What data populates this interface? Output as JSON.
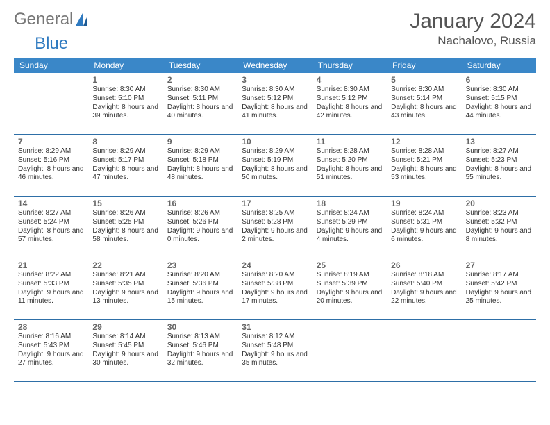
{
  "logo": {
    "text_general": "General",
    "text_blue": "Blue"
  },
  "header": {
    "month_title": "January 2024",
    "location": "Nachalovo, Russia"
  },
  "colors": {
    "header_bg": "#3a87c8",
    "divider": "#2e6fa7",
    "text": "#333333",
    "muted": "#666666"
  },
  "dow": [
    "Sunday",
    "Monday",
    "Tuesday",
    "Wednesday",
    "Thursday",
    "Friday",
    "Saturday"
  ],
  "weeks": [
    [
      null,
      {
        "n": "1",
        "sr": "8:30 AM",
        "ss": "5:10 PM",
        "dl": "8 hours and 39 minutes."
      },
      {
        "n": "2",
        "sr": "8:30 AM",
        "ss": "5:11 PM",
        "dl": "8 hours and 40 minutes."
      },
      {
        "n": "3",
        "sr": "8:30 AM",
        "ss": "5:12 PM",
        "dl": "8 hours and 41 minutes."
      },
      {
        "n": "4",
        "sr": "8:30 AM",
        "ss": "5:12 PM",
        "dl": "8 hours and 42 minutes."
      },
      {
        "n": "5",
        "sr": "8:30 AM",
        "ss": "5:14 PM",
        "dl": "8 hours and 43 minutes."
      },
      {
        "n": "6",
        "sr": "8:30 AM",
        "ss": "5:15 PM",
        "dl": "8 hours and 44 minutes."
      }
    ],
    [
      {
        "n": "7",
        "sr": "8:29 AM",
        "ss": "5:16 PM",
        "dl": "8 hours and 46 minutes."
      },
      {
        "n": "8",
        "sr": "8:29 AM",
        "ss": "5:17 PM",
        "dl": "8 hours and 47 minutes."
      },
      {
        "n": "9",
        "sr": "8:29 AM",
        "ss": "5:18 PM",
        "dl": "8 hours and 48 minutes."
      },
      {
        "n": "10",
        "sr": "8:29 AM",
        "ss": "5:19 PM",
        "dl": "8 hours and 50 minutes."
      },
      {
        "n": "11",
        "sr": "8:28 AM",
        "ss": "5:20 PM",
        "dl": "8 hours and 51 minutes."
      },
      {
        "n": "12",
        "sr": "8:28 AM",
        "ss": "5:21 PM",
        "dl": "8 hours and 53 minutes."
      },
      {
        "n": "13",
        "sr": "8:27 AM",
        "ss": "5:23 PM",
        "dl": "8 hours and 55 minutes."
      }
    ],
    [
      {
        "n": "14",
        "sr": "8:27 AM",
        "ss": "5:24 PM",
        "dl": "8 hours and 57 minutes."
      },
      {
        "n": "15",
        "sr": "8:26 AM",
        "ss": "5:25 PM",
        "dl": "8 hours and 58 minutes."
      },
      {
        "n": "16",
        "sr": "8:26 AM",
        "ss": "5:26 PM",
        "dl": "9 hours and 0 minutes."
      },
      {
        "n": "17",
        "sr": "8:25 AM",
        "ss": "5:28 PM",
        "dl": "9 hours and 2 minutes."
      },
      {
        "n": "18",
        "sr": "8:24 AM",
        "ss": "5:29 PM",
        "dl": "9 hours and 4 minutes."
      },
      {
        "n": "19",
        "sr": "8:24 AM",
        "ss": "5:31 PM",
        "dl": "9 hours and 6 minutes."
      },
      {
        "n": "20",
        "sr": "8:23 AM",
        "ss": "5:32 PM",
        "dl": "9 hours and 8 minutes."
      }
    ],
    [
      {
        "n": "21",
        "sr": "8:22 AM",
        "ss": "5:33 PM",
        "dl": "9 hours and 11 minutes."
      },
      {
        "n": "22",
        "sr": "8:21 AM",
        "ss": "5:35 PM",
        "dl": "9 hours and 13 minutes."
      },
      {
        "n": "23",
        "sr": "8:20 AM",
        "ss": "5:36 PM",
        "dl": "9 hours and 15 minutes."
      },
      {
        "n": "24",
        "sr": "8:20 AM",
        "ss": "5:38 PM",
        "dl": "9 hours and 17 minutes."
      },
      {
        "n": "25",
        "sr": "8:19 AM",
        "ss": "5:39 PM",
        "dl": "9 hours and 20 minutes."
      },
      {
        "n": "26",
        "sr": "8:18 AM",
        "ss": "5:40 PM",
        "dl": "9 hours and 22 minutes."
      },
      {
        "n": "27",
        "sr": "8:17 AM",
        "ss": "5:42 PM",
        "dl": "9 hours and 25 minutes."
      }
    ],
    [
      {
        "n": "28",
        "sr": "8:16 AM",
        "ss": "5:43 PM",
        "dl": "9 hours and 27 minutes."
      },
      {
        "n": "29",
        "sr": "8:14 AM",
        "ss": "5:45 PM",
        "dl": "9 hours and 30 minutes."
      },
      {
        "n": "30",
        "sr": "8:13 AM",
        "ss": "5:46 PM",
        "dl": "9 hours and 32 minutes."
      },
      {
        "n": "31",
        "sr": "8:12 AM",
        "ss": "5:48 PM",
        "dl": "9 hours and 35 minutes."
      },
      null,
      null,
      null
    ]
  ],
  "labels": {
    "sunrise": "Sunrise:",
    "sunset": "Sunset:",
    "daylight": "Daylight:"
  }
}
